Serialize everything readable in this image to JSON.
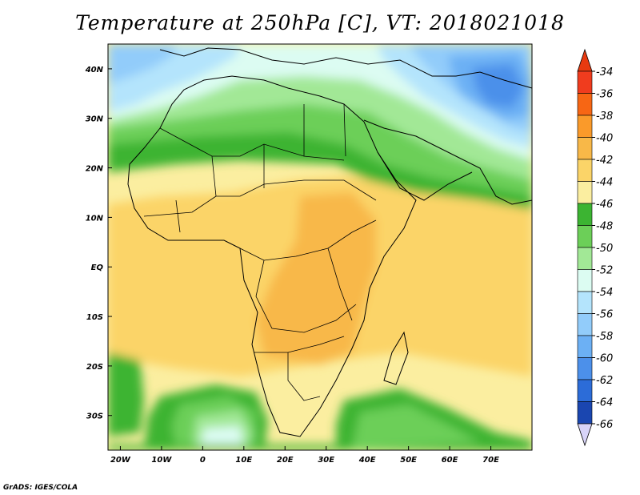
{
  "title": "Temperature at 250hPa [C], VT: 2018021018",
  "credit": "GrADS: IGES/COLA",
  "map": {
    "lon_range": [
      -23,
      80
    ],
    "lat_range": [
      -37,
      45
    ],
    "lat_ticks": [
      {
        "value": 40,
        "label": "40N"
      },
      {
        "value": 30,
        "label": "30N"
      },
      {
        "value": 20,
        "label": "20N"
      },
      {
        "value": 10,
        "label": "10N"
      },
      {
        "value": 0,
        "label": "EQ"
      },
      {
        "value": -10,
        "label": "10S"
      },
      {
        "value": -20,
        "label": "20S"
      },
      {
        "value": -30,
        "label": "30S"
      }
    ],
    "lon_ticks": [
      {
        "value": -20,
        "label": "20W"
      },
      {
        "value": -10,
        "label": "10W"
      },
      {
        "value": 0,
        "label": "0"
      },
      {
        "value": 10,
        "label": "10E"
      },
      {
        "value": 20,
        "label": "20E"
      },
      {
        "value": 30,
        "label": "30E"
      },
      {
        "value": 40,
        "label": "40E"
      },
      {
        "value": 50,
        "label": "50E"
      },
      {
        "value": 60,
        "label": "60E"
      },
      {
        "value": 70,
        "label": "70E"
      }
    ]
  },
  "colorbar": {
    "labels": [
      "-34",
      "-36",
      "-38",
      "-40",
      "-42",
      "-44",
      "-46",
      "-48",
      "-50",
      "-52",
      "-54",
      "-56",
      "-58",
      "-60",
      "-62",
      "-64",
      "-66"
    ],
    "colors": [
      "#f03c1e",
      "#f76614",
      "#fa9a2a",
      "#f8b848",
      "#fbd468",
      "#fbeea0",
      "#3cb432",
      "#6ccf58",
      "#a2e896",
      "#dcfcf2",
      "#b4e4fc",
      "#92ccfa",
      "#6cb0f4",
      "#4c90ea",
      "#2c6cd8",
      "#1a46b0",
      "#0c1e7a"
    ],
    "top_color": "#e83a10",
    "bottom_color": "#d8d4f8"
  }
}
